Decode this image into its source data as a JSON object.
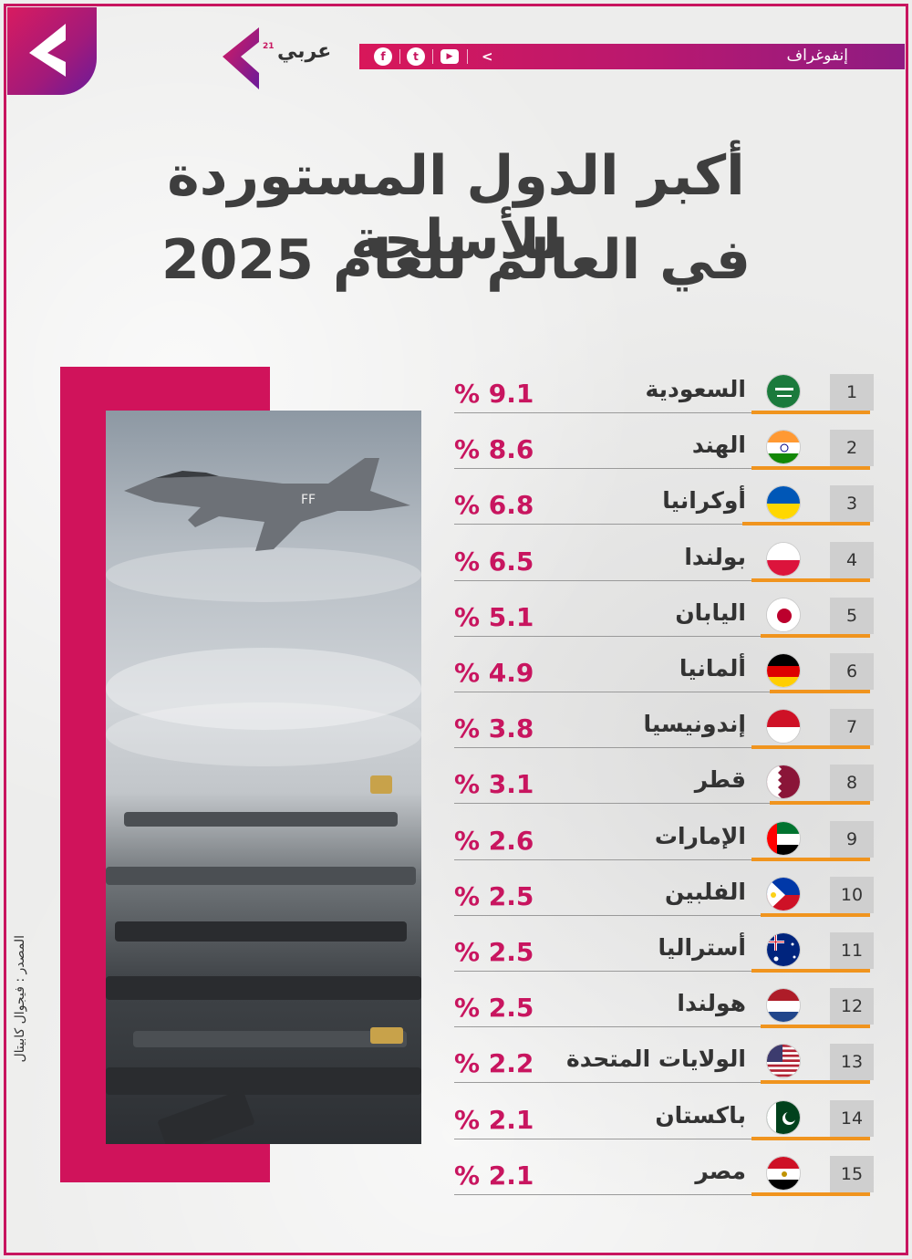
{
  "header": {
    "brand_name": "عربي",
    "brand_superscript": "21",
    "section_label": "إنفوغراف",
    "social": [
      {
        "icon": "facebook-icon",
        "glyph": "f"
      },
      {
        "icon": "twitter-icon",
        "glyph": "t"
      },
      {
        "icon": "youtube-icon",
        "glyph": "▶"
      }
    ],
    "share_glyph": "<"
  },
  "title": {
    "line1": "أكبر الدول المستوردة للأسلحة",
    "line2": "في العالم للعام 2025"
  },
  "source": "المصدر : فيجوال كابيتال",
  "colors": {
    "accent_pink": "#c8155f",
    "accent_orange": "#f0941e",
    "title_gray": "#3e3e3e"
  },
  "rows": [
    {
      "rank": "1",
      "country": "السعودية",
      "value": "% 9.1",
      "flag": "saudi-arabia-flag-icon"
    },
    {
      "rank": "2",
      "country": "الهند",
      "value": "% 8.6",
      "flag": "india-flag-icon"
    },
    {
      "rank": "3",
      "country": "أوكرانيا",
      "value": "% 6.8",
      "flag": "ukraine-flag-icon"
    },
    {
      "rank": "4",
      "country": "بولندا",
      "value": "% 6.5",
      "flag": "poland-flag-icon"
    },
    {
      "rank": "5",
      "country": "اليابان",
      "value": "% 5.1",
      "flag": "japan-flag-icon"
    },
    {
      "rank": "6",
      "country": "ألمانيا",
      "value": "% 4.9",
      "flag": "germany-flag-icon"
    },
    {
      "rank": "7",
      "country": "إندونيسيا",
      "value": "% 3.8",
      "flag": "indonesia-flag-icon"
    },
    {
      "rank": "8",
      "country": "قطر",
      "value": "% 3.1",
      "flag": "qatar-flag-icon"
    },
    {
      "rank": "9",
      "country": "الإمارات",
      "value": "% 2.6",
      "flag": "uae-flag-icon"
    },
    {
      "rank": "10",
      "country": "الفلبين",
      "value": "% 2.5",
      "flag": "philippines-flag-icon"
    },
    {
      "rank": "11",
      "country": "أستراليا",
      "value": "% 2.5",
      "flag": "australia-flag-icon"
    },
    {
      "rank": "12",
      "country": "هولندا",
      "value": "% 2.5",
      "flag": "netherlands-flag-icon"
    },
    {
      "rank": "13",
      "country": "الولايات المتحدة",
      "value": "% 2.2",
      "flag": "usa-flag-icon"
    },
    {
      "rank": "14",
      "country": "باكستان",
      "value": "% 2.1",
      "flag": "pakistan-flag-icon"
    },
    {
      "rank": "15",
      "country": "مصر",
      "value": "% 2.1",
      "flag": "egypt-flag-icon"
    }
  ]
}
